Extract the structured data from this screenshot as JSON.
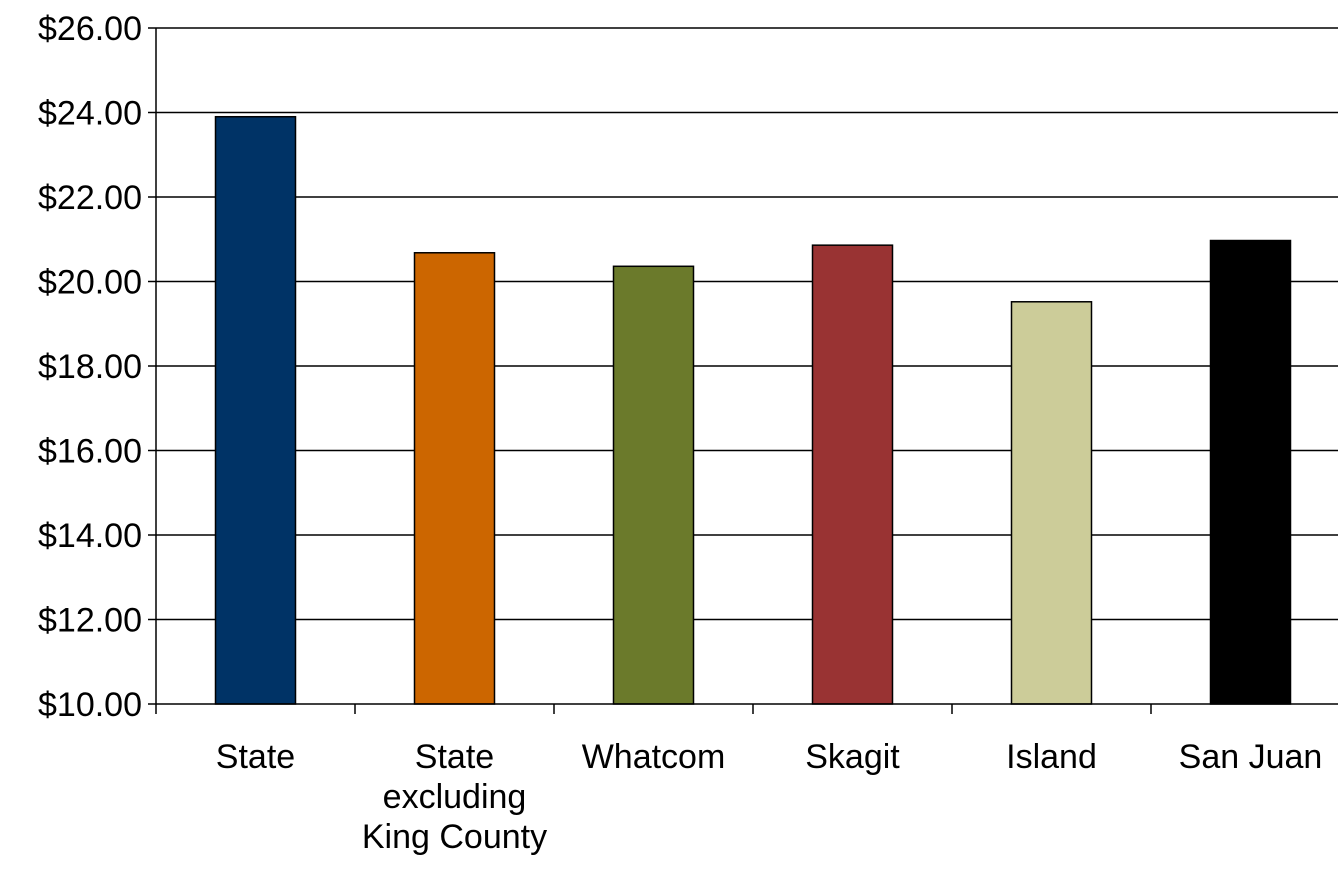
{
  "chart_data": {
    "type": "bar",
    "title": "",
    "xlabel": "",
    "ylabel": "",
    "categories": [
      [
        "State"
      ],
      [
        "State",
        "excluding",
        "King County"
      ],
      [
        "Whatcom"
      ],
      [
        "Skagit"
      ],
      [
        "Island"
      ],
      [
        "San Juan"
      ]
    ],
    "values": [
      23.9,
      20.68,
      20.36,
      20.86,
      19.52,
      20.97
    ],
    "colors": [
      "#003366",
      "#CC6600",
      "#6B7A2B",
      "#993333",
      "#CCCC99",
      "#000000"
    ],
    "ylim": [
      10,
      26
    ],
    "yticks": [
      10,
      12,
      14,
      16,
      18,
      20,
      22,
      24,
      26
    ],
    "ytick_labels": [
      "$10.00",
      "$12.00",
      "$14.00",
      "$16.00",
      "$18.00",
      "$20.00",
      "$22.00",
      "$24.00",
      "$26.00"
    ],
    "grid": true,
    "legend": "none"
  }
}
